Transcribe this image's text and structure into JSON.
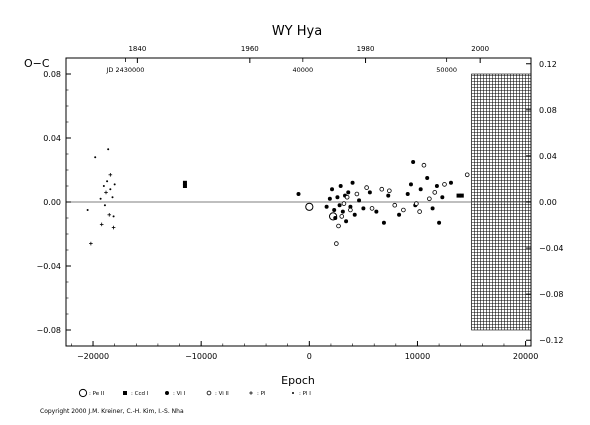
{
  "chart_data": {
    "type": "scatter",
    "title": "WY  Hya",
    "xlabel": "Epoch",
    "ylabel": "O−C",
    "xlim": [
      -22500,
      20500
    ],
    "ylim": [
      -0.09,
      0.09
    ],
    "right_ylim": [
      -0.125,
      0.125
    ],
    "x_ticks": [
      -20000,
      -10000,
      0,
      10000,
      20000
    ],
    "x_tick_labels": [
      "−20000",
      "−10000",
      "0",
      "10000",
      "20000"
    ],
    "y_ticks": [
      -0.08,
      -0.04,
      0.0,
      0.04,
      0.08
    ],
    "y_tick_labels": [
      "−0.08",
      "−0.04",
      "0.00",
      "0.04",
      "0.08"
    ],
    "right_y_ticks": [
      -0.12,
      -0.08,
      -0.04,
      0.0,
      0.04,
      0.08,
      0.12
    ],
    "right_y_tick_labels": [
      "−0.12",
      "−0.08",
      "−0.04",
      "0.00",
      "0.04",
      "0.08",
      "0.12"
    ],
    "top_year_ticks": [
      1840,
      1960,
      1980,
      2000
    ],
    "top_year_epochs": [
      -15900,
      -5500,
      5200,
      15800
    ],
    "top_year_labels": [
      "1840",
      "1960",
      "1980",
      "2000"
    ],
    "jd_labels": [
      {
        "text": "JD 2430000",
        "epoch": -17000
      },
      {
        "text": "40000",
        "epoch": -600
      },
      {
        "text": "50000",
        "epoch": 12700
      }
    ],
    "hatched_region_epochs": [
      15000,
      20500
    ],
    "hatched_region_y": [
      -0.08,
      0.08
    ],
    "grid": false,
    "legend_position": "bottom",
    "series": [
      {
        "name": "Pe II",
        "marker": "open-circle-large",
        "points": [
          [
            0,
            -0.003
          ],
          [
            2200,
            -0.009
          ]
        ]
      },
      {
        "name": "Ccd I",
        "marker": "filled-square",
        "points": [
          [
            -11500,
            0.01
          ],
          [
            -11500,
            0.012
          ],
          [
            13800,
            0.004
          ],
          [
            14100,
            0.004
          ]
        ]
      },
      {
        "name": "Vi I",
        "marker": "filled-circle",
        "points": [
          [
            -1000,
            0.005
          ],
          [
            1600,
            -0.003
          ],
          [
            1900,
            0.002
          ],
          [
            2100,
            0.008
          ],
          [
            2300,
            -0.005
          ],
          [
            2400,
            -0.01
          ],
          [
            2600,
            0.003
          ],
          [
            2800,
            -0.002
          ],
          [
            2900,
            0.01
          ],
          [
            3100,
            -0.006
          ],
          [
            3300,
            0.004
          ],
          [
            3400,
            -0.012
          ],
          [
            3600,
            0.006
          ],
          [
            3800,
            -0.003
          ],
          [
            4000,
            0.012
          ],
          [
            4200,
            -0.008
          ],
          [
            4600,
            0.001
          ],
          [
            5000,
            -0.004
          ],
          [
            5600,
            0.006
          ],
          [
            6200,
            -0.006
          ],
          [
            6900,
            -0.013
          ],
          [
            7300,
            0.004
          ],
          [
            8300,
            -0.008
          ],
          [
            9100,
            0.005
          ],
          [
            9400,
            0.011
          ],
          [
            9600,
            0.025
          ],
          [
            9800,
            -0.002
          ],
          [
            10300,
            0.008
          ],
          [
            10900,
            0.015
          ],
          [
            11400,
            -0.004
          ],
          [
            11800,
            0.01
          ],
          [
            12000,
            -0.013
          ],
          [
            12300,
            0.003
          ],
          [
            13100,
            0.012
          ]
        ]
      },
      {
        "name": "Vi II",
        "marker": "open-circle",
        "points": [
          [
            2500,
            -0.026
          ],
          [
            2700,
            -0.015
          ],
          [
            3000,
            -0.009
          ],
          [
            3200,
            -0.001
          ],
          [
            3500,
            0.003
          ],
          [
            3800,
            -0.005
          ],
          [
            4400,
            0.005
          ],
          [
            5300,
            0.009
          ],
          [
            5800,
            -0.004
          ],
          [
            6700,
            0.008
          ],
          [
            7400,
            0.007
          ],
          [
            7900,
            -0.002
          ],
          [
            8700,
            -0.005
          ],
          [
            9900,
            -0.001
          ],
          [
            10200,
            -0.006
          ],
          [
            10600,
            0.023
          ],
          [
            11100,
            0.002
          ],
          [
            11600,
            0.006
          ],
          [
            12500,
            0.011
          ],
          [
            14600,
            0.017
          ]
        ]
      },
      {
        "name": "Pl",
        "marker": "cross",
        "points": [
          [
            -20200,
            -0.026
          ],
          [
            -19200,
            -0.014
          ],
          [
            -18800,
            0.006
          ],
          [
            -18500,
            -0.008
          ],
          [
            -18400,
            0.017
          ],
          [
            -18100,
            -0.016
          ]
        ]
      },
      {
        "name": "Pl I",
        "marker": "small-dot",
        "points": [
          [
            -20500,
            -0.005
          ],
          [
            -19800,
            0.028
          ],
          [
            -19300,
            0.002
          ],
          [
            -19000,
            0.01
          ],
          [
            -18900,
            -0.002
          ],
          [
            -18700,
            0.013
          ],
          [
            -18600,
            0.033
          ],
          [
            -18400,
            0.008
          ],
          [
            -18200,
            0.003
          ],
          [
            -18100,
            -0.009
          ],
          [
            -18000,
            0.011
          ]
        ]
      }
    ]
  },
  "legend": [
    {
      "symbol": "open-circle-large",
      "label": ": Pe II"
    },
    {
      "symbol": "filled-square",
      "label": ": Ccd I"
    },
    {
      "symbol": "filled-circle",
      "label": ": Vi I"
    },
    {
      "symbol": "open-circle",
      "label": ": Vi II"
    },
    {
      "symbol": "cross",
      "label": ": Pl"
    },
    {
      "symbol": "small-dot",
      "label": ": Pl I"
    }
  ],
  "copyright": "Copyright 2000 J.M. Kreiner, C.-H. Kim, I.-S. Nha"
}
